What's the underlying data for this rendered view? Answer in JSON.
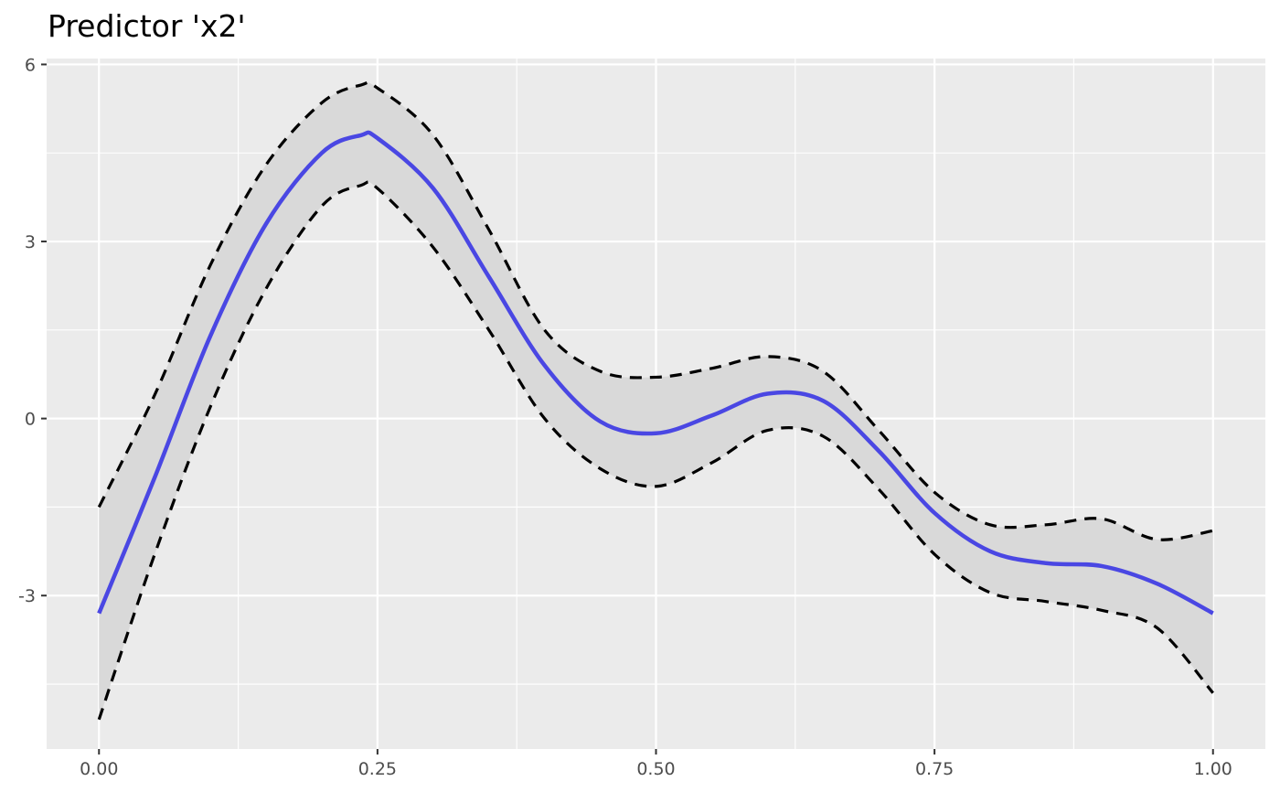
{
  "chart_data": {
    "type": "line",
    "title": "Predictor 'x2'",
    "xlabel": "",
    "ylabel": "",
    "xlim": [
      -0.047,
      1.047
    ],
    "ylim": [
      -5.6,
      6.1
    ],
    "x_ticks": [
      0.0,
      0.25,
      0.5,
      0.75,
      1.0
    ],
    "x_tick_labels": [
      "0.00",
      "0.25",
      "0.50",
      "0.75",
      "1.00"
    ],
    "x_minor_ticks": [
      0.125,
      0.375,
      0.625,
      0.875
    ],
    "y_ticks": [
      -3,
      0,
      3,
      6
    ],
    "y_tick_labels": [
      "-3",
      "0",
      "3",
      "6"
    ],
    "y_minor_ticks": [
      -4.5,
      -1.5,
      1.5,
      4.5
    ],
    "grid": true,
    "legend": "none",
    "colors": {
      "panel_background": "#ebebeb",
      "gridline": "#ffffff",
      "band_fill": "#d9d9d9",
      "estimate_line": "#4a47e3",
      "bound_line": "#000000"
    },
    "x": [
      0.0,
      0.05,
      0.1,
      0.15,
      0.2,
      0.235,
      0.25,
      0.3,
      0.35,
      0.4,
      0.45,
      0.5,
      0.55,
      0.6,
      0.65,
      0.7,
      0.75,
      0.8,
      0.85,
      0.9,
      0.95,
      1.0
    ],
    "series": [
      {
        "role": "estimate",
        "values": [
          -3.3,
          -1.0,
          1.4,
          3.3,
          4.5,
          4.8,
          4.75,
          3.9,
          2.4,
          0.9,
          -0.05,
          -0.25,
          0.05,
          0.42,
          0.3,
          -0.55,
          -1.6,
          -2.25,
          -2.45,
          -2.5,
          -2.8,
          -3.3
        ]
      },
      {
        "role": "upper_bound",
        "values": [
          -1.5,
          0.4,
          2.6,
          4.3,
          5.35,
          5.65,
          5.6,
          4.8,
          3.2,
          1.5,
          0.8,
          0.7,
          0.85,
          1.05,
          0.8,
          -0.2,
          -1.25,
          -1.8,
          -1.8,
          -1.7,
          -2.05,
          -1.9
        ]
      },
      {
        "role": "lower_bound",
        "values": [
          -5.1,
          -2.3,
          0.2,
          2.2,
          3.6,
          3.95,
          3.9,
          2.9,
          1.5,
          0.0,
          -0.85,
          -1.15,
          -0.75,
          -0.2,
          -0.3,
          -1.2,
          -2.3,
          -2.95,
          -3.1,
          -3.25,
          -3.55,
          -4.65
        ]
      }
    ]
  }
}
